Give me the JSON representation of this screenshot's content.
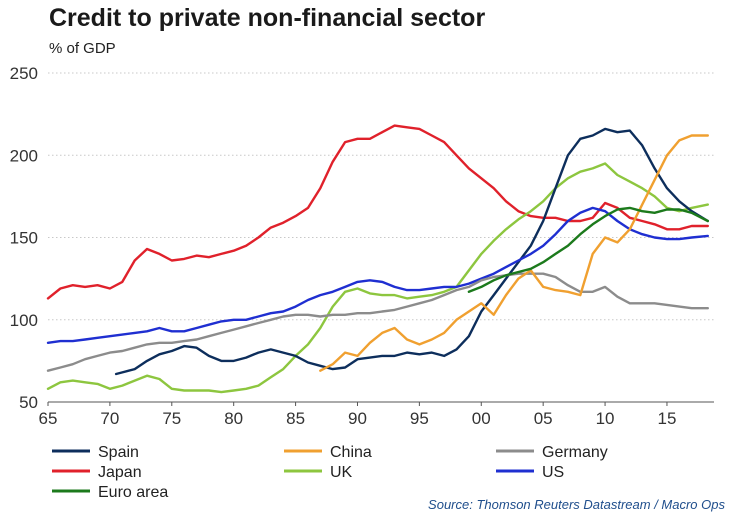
{
  "chart_data": {
    "type": "line",
    "title": "Credit to private non-financial sector",
    "ylabel": "% of GDP",
    "xlabel": "",
    "xlim": [
      1965,
      2018.8
    ],
    "ylim": [
      50,
      250
    ],
    "yticks": [
      50,
      100,
      150,
      200,
      250
    ],
    "xticks": [
      {
        "year": 1965,
        "label": "65"
      },
      {
        "year": 1970,
        "label": "70"
      },
      {
        "year": 1975,
        "label": "75"
      },
      {
        "year": 1980,
        "label": "80"
      },
      {
        "year": 1985,
        "label": "85"
      },
      {
        "year": 1990,
        "label": "90"
      },
      {
        "year": 1995,
        "label": "95"
      },
      {
        "year": 2000,
        "label": "00"
      },
      {
        "year": 2005,
        "label": "05"
      },
      {
        "year": 2010,
        "label": "10"
      },
      {
        "year": 2015,
        "label": "15"
      }
    ],
    "grid": "horizontal dotted",
    "source": "Source: Thomson Reuters Datastream / Macro Ops",
    "series": [
      {
        "name": "Japan",
        "color": "#e0212b",
        "x": [
          1965,
          1966,
          1967,
          1968,
          1969,
          1970,
          1971,
          1972,
          1973,
          1974,
          1975,
          1976,
          1977,
          1978,
          1979,
          1980,
          1981,
          1982,
          1983,
          1984,
          1985,
          1986,
          1987,
          1988,
          1989,
          1990,
          1991,
          1992,
          1993,
          1994,
          1995,
          1996,
          1997,
          1998,
          1999,
          2000,
          2001,
          2002,
          2003,
          2004,
          2005,
          2006,
          2007,
          2008,
          2009,
          2010,
          2011,
          2012,
          2013,
          2014,
          2015,
          2016,
          2017,
          2018.3
        ],
        "values": [
          113,
          119,
          121,
          120,
          121,
          119,
          123,
          136,
          143,
          140,
          136,
          137,
          139,
          138,
          140,
          142,
          145,
          150,
          156,
          159,
          163,
          168,
          180,
          196,
          208,
          210,
          210,
          214,
          218,
          217,
          216,
          212,
          208,
          200,
          192,
          186,
          180,
          172,
          166,
          163,
          162,
          162,
          160,
          160,
          162,
          171,
          168,
          162,
          160,
          158,
          155,
          155,
          157,
          157
        ]
      },
      {
        "name": "UK",
        "color": "#8dc63f",
        "x": [
          1965,
          1966,
          1967,
          1968,
          1969,
          1970,
          1971,
          1972,
          1973,
          1974,
          1975,
          1976,
          1977,
          1978,
          1979,
          1980,
          1981,
          1982,
          1983,
          1984,
          1985,
          1986,
          1987,
          1988,
          1989,
          1990,
          1991,
          1992,
          1993,
          1994,
          1995,
          1996,
          1997,
          1998,
          1999,
          2000,
          2001,
          2002,
          2003,
          2004,
          2005,
          2006,
          2007,
          2008,
          2009,
          2010,
          2011,
          2012,
          2013,
          2014,
          2015,
          2016,
          2017,
          2018.3
        ],
        "values": [
          58,
          62,
          63,
          62,
          61,
          58,
          60,
          63,
          66,
          64,
          58,
          57,
          57,
          57,
          56,
          57,
          58,
          60,
          65,
          70,
          78,
          85,
          95,
          108,
          117,
          119,
          116,
          115,
          115,
          113,
          114,
          115,
          117,
          120,
          130,
          140,
          148,
          155,
          161,
          166,
          172,
          180,
          186,
          190,
          192,
          195,
          188,
          184,
          180,
          175,
          168,
          166,
          168,
          170
        ]
      },
      {
        "name": "Spain",
        "color": "#0d2e5c",
        "x": [
          1970.5,
          1971,
          1972,
          1973,
          1974,
          1975,
          1976,
          1977,
          1978,
          1979,
          1980,
          1981,
          1982,
          1983,
          1984,
          1985,
          1986,
          1987,
          1988,
          1989,
          1990,
          1991,
          1992,
          1993,
          1994,
          1995,
          1996,
          1997,
          1998,
          1999,
          2000,
          2001,
          2002,
          2003,
          2004,
          2005,
          2006,
          2007,
          2008,
          2009,
          2010,
          2011,
          2012,
          2013,
          2014,
          2015,
          2016,
          2017,
          2018.3
        ],
        "values": [
          67,
          68,
          70,
          75,
          79,
          81,
          84,
          83,
          78,
          75,
          75,
          77,
          80,
          82,
          80,
          78,
          74,
          72,
          70,
          71,
          76,
          77,
          78,
          78,
          80,
          79,
          80,
          78,
          82,
          90,
          105,
          115,
          125,
          135,
          145,
          160,
          180,
          200,
          210,
          212,
          216,
          214,
          215,
          206,
          192,
          180,
          172,
          166,
          160
        ]
      },
      {
        "name": "US",
        "color": "#1f2fd1",
        "x": [
          1965,
          1966,
          1967,
          1968,
          1969,
          1970,
          1971,
          1972,
          1973,
          1974,
          1975,
          1976,
          1977,
          1978,
          1979,
          1980,
          1981,
          1982,
          1983,
          1984,
          1985,
          1986,
          1987,
          1988,
          1989,
          1990,
          1991,
          1992,
          1993,
          1994,
          1995,
          1996,
          1997,
          1998,
          1999,
          2000,
          2001,
          2002,
          2003,
          2004,
          2005,
          2006,
          2007,
          2008,
          2009,
          2010,
          2011,
          2012,
          2013,
          2014,
          2015,
          2016,
          2017,
          2018.3
        ],
        "values": [
          86,
          87,
          87,
          88,
          89,
          90,
          91,
          92,
          93,
          95,
          93,
          93,
          95,
          97,
          99,
          100,
          100,
          102,
          104,
          105,
          108,
          112,
          115,
          117,
          120,
          123,
          124,
          123,
          120,
          118,
          118,
          119,
          120,
          120,
          122,
          125,
          128,
          132,
          136,
          140,
          145,
          152,
          160,
          165,
          168,
          166,
          160,
          155,
          152,
          150,
          149,
          149,
          150,
          151
        ]
      },
      {
        "name": "Germany",
        "color": "#8c8c8c",
        "x": [
          1965,
          1966,
          1967,
          1968,
          1969,
          1970,
          1971,
          1972,
          1973,
          1974,
          1975,
          1976,
          1977,
          1978,
          1979,
          1980,
          1981,
          1982,
          1983,
          1984,
          1985,
          1986,
          1987,
          1988,
          1989,
          1990,
          1991,
          1992,
          1993,
          1994,
          1995,
          1996,
          1997,
          1998,
          1999,
          2000,
          2001,
          2002,
          2003,
          2004,
          2005,
          2006,
          2007,
          2008,
          2009,
          2010,
          2011,
          2012,
          2013,
          2014,
          2015,
          2016,
          2017,
          2018.3
        ],
        "values": [
          69,
          71,
          73,
          76,
          78,
          80,
          81,
          83,
          85,
          86,
          86,
          87,
          88,
          90,
          92,
          94,
          96,
          98,
          100,
          102,
          103,
          103,
          102,
          103,
          103,
          104,
          104,
          105,
          106,
          108,
          110,
          112,
          115,
          118,
          120,
          124,
          126,
          127,
          128,
          128,
          128,
          126,
          121,
          117,
          117,
          120,
          114,
          110,
          110,
          110,
          109,
          108,
          107,
          107
        ]
      },
      {
        "name": "China",
        "color": "#f0a030",
        "x": [
          1987,
          1988,
          1989,
          1990,
          1991,
          1992,
          1993,
          1994,
          1995,
          1996,
          1997,
          1998,
          1999,
          2000,
          2001,
          2002,
          2003,
          2004,
          2005,
          2006,
          2007,
          2008,
          2009,
          2010,
          2011,
          2012,
          2013,
          2014,
          2015,
          2016,
          2017,
          2018.3
        ],
        "values": [
          69,
          73,
          80,
          78,
          86,
          92,
          95,
          88,
          85,
          88,
          92,
          100,
          105,
          110,
          103,
          115,
          125,
          130,
          120,
          118,
          117,
          115,
          140,
          150,
          147,
          155,
          170,
          185,
          200,
          209,
          212,
          212
        ]
      },
      {
        "name": "Euro area",
        "color": "#1c7a1c",
        "x": [
          1999,
          2000,
          2001,
          2002,
          2003,
          2004,
          2005,
          2006,
          2007,
          2008,
          2009,
          2010,
          2011,
          2012,
          2013,
          2014,
          2015,
          2016,
          2017,
          2018.3
        ],
        "values": [
          117,
          120,
          124,
          127,
          129,
          131,
          135,
          140,
          145,
          152,
          158,
          163,
          167,
          168,
          166,
          165,
          167,
          167,
          165,
          160
        ]
      }
    ]
  }
}
